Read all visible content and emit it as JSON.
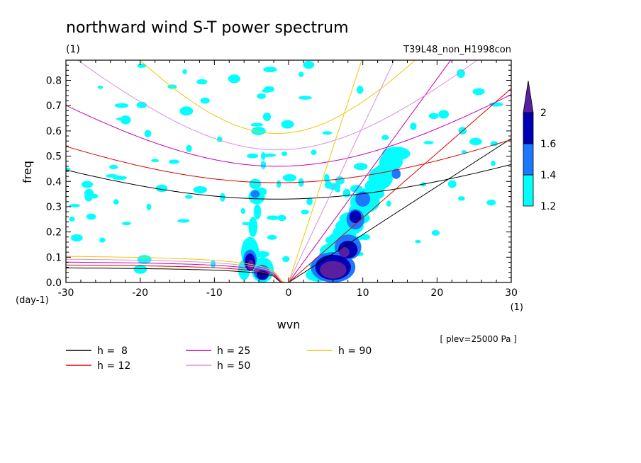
{
  "chart_data": {
    "type": "contour",
    "title": "northward wind S-T power spectrum",
    "subtitle": "(1)",
    "experiment": "T39L48_non_H1998con",
    "xlabel": "wvn",
    "ylabel": "freq",
    "x_unit": "(1)",
    "y_unit": "(day-1)",
    "xlim": [
      -30,
      30
    ],
    "ylim": [
      0,
      0.88
    ],
    "x_ticks": [
      -30,
      -20,
      -10,
      0,
      10,
      20,
      30
    ],
    "x_tick_labels": [
      "-30",
      "-20",
      "-10",
      "0",
      "10",
      "20",
      "30"
    ],
    "y_ticks": [
      0,
      0.1,
      0.2,
      0.3,
      0.4,
      0.5,
      0.6,
      0.7,
      0.8
    ],
    "y_tick_labels": [
      "0.0",
      "0.1",
      "0.2",
      "0.3",
      "0.4",
      "0.5",
      "0.6",
      "0.7",
      "0.8"
    ],
    "plev_note": "[ plev=25000 Pa ]",
    "colorbar": {
      "levels": [
        1.2,
        1.4,
        1.6,
        2
      ],
      "labels": [
        "1.2",
        "1.4",
        "1.6",
        "2"
      ],
      "colors": [
        "#00ffff",
        "#1e78ff",
        "#0000b4",
        "#5a1ea0"
      ]
    },
    "dispersion_curves": [
      {
        "label": "h =  8",
        "h": 8,
        "color": "#000000"
      },
      {
        "label": "h = 12",
        "h": 12,
        "color": "#e00000"
      },
      {
        "label": "h = 25",
        "h": 25,
        "color": "#c800b4"
      },
      {
        "label": "h = 50",
        "h": 50,
        "color": "#dc8cdc"
      },
      {
        "label": "h = 90",
        "h": 90,
        "color": "#f0c800"
      }
    ],
    "shaded_regions": [
      {
        "level": 1.2,
        "k_center": -4.5,
        "f_range": [
          0.0,
          0.42
        ],
        "desc": "westward spike near k=-4 to -5"
      },
      {
        "level": 2,
        "k_center": -5,
        "f_range": [
          0.0,
          0.15
        ],
        "desc": "strong westward low-frequency maximum"
      },
      {
        "level": 1.2,
        "k_center": 9,
        "f_range": [
          0.0,
          0.55
        ],
        "desc": "eastward Kelvin-like band"
      },
      {
        "level": 2,
        "k_center": 6,
        "f_range": [
          0.0,
          0.15
        ],
        "desc": "strong eastward low-frequency maximum"
      }
    ]
  }
}
